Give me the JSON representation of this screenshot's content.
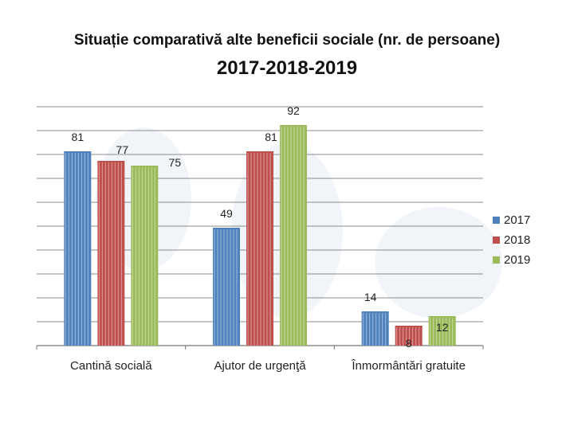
{
  "chart_data": {
    "type": "bar",
    "title": "Situație comparativă alte beneficii sociale (nr. de persoane)",
    "subtitle": "2017-2018-2019",
    "categories": [
      "Cantină socială",
      "Ajutor de urgenţă",
      "Înmormântări gratuite"
    ],
    "series": [
      {
        "name": "2017",
        "color": "#4f81bd",
        "values": [
          81,
          49,
          14
        ]
      },
      {
        "name": "2018",
        "color": "#c0504d",
        "values": [
          77,
          81,
          8
        ]
      },
      {
        "name": "2019",
        "color": "#9bbb59",
        "values": [
          75,
          92,
          12
        ]
      }
    ],
    "ylim": [
      0,
      100
    ],
    "grid": true,
    "legend": "right",
    "xlabel": "",
    "ylabel": ""
  }
}
